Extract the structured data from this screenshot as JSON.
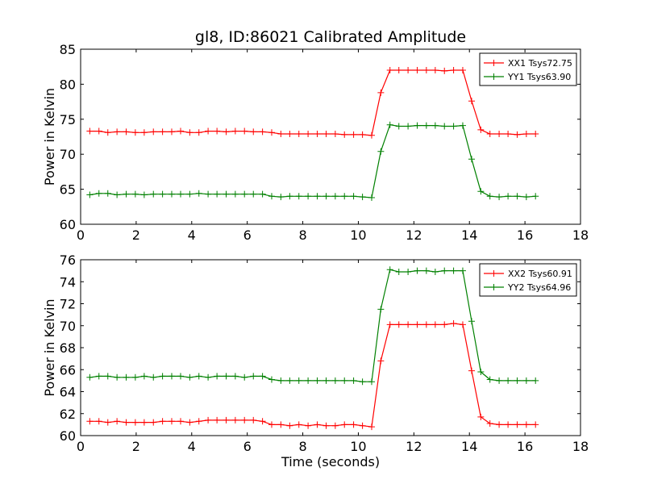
{
  "figure": {
    "title": "gl8, ID:86021 Calibrated Amplitude",
    "xlabel": "Time (seconds)"
  },
  "chart_data": [
    {
      "type": "line",
      "title": "gl8, ID:86021 Calibrated Amplitude",
      "xlabel": "",
      "ylabel": "Power in Kelvin",
      "xlim": [
        0,
        18
      ],
      "ylim": [
        60,
        85
      ],
      "xticks": [
        0,
        2,
        4,
        6,
        8,
        10,
        12,
        14,
        16,
        18
      ],
      "yticks": [
        60,
        65,
        70,
        75,
        80,
        85
      ],
      "grid": false,
      "legend_position": "top-right",
      "x": [
        0.33,
        0.66,
        0.98,
        1.31,
        1.64,
        1.97,
        2.29,
        2.62,
        2.95,
        3.28,
        3.6,
        3.93,
        4.26,
        4.59,
        4.91,
        5.24,
        5.57,
        5.9,
        6.22,
        6.55,
        6.88,
        7.21,
        7.53,
        7.86,
        8.19,
        8.52,
        8.84,
        9.17,
        9.5,
        9.83,
        10.15,
        10.48,
        10.81,
        11.14,
        11.46,
        11.79,
        12.12,
        12.45,
        12.77,
        13.1,
        13.43,
        13.76,
        14.08,
        14.41,
        14.74,
        15.07,
        15.39,
        15.72,
        16.05,
        16.38
      ],
      "series": [
        {
          "name": "XX1 Tsys72.75",
          "color": "#ff0000",
          "values": [
            73.3,
            73.3,
            73.1,
            73.2,
            73.2,
            73.1,
            73.1,
            73.2,
            73.2,
            73.2,
            73.3,
            73.1,
            73.1,
            73.3,
            73.3,
            73.2,
            73.3,
            73.3,
            73.2,
            73.2,
            73.1,
            72.9,
            72.9,
            72.9,
            72.9,
            72.9,
            72.9,
            72.9,
            72.8,
            72.8,
            72.8,
            72.7,
            78.8,
            82.0,
            82.0,
            82.0,
            82.0,
            82.0,
            82.0,
            81.9,
            82.0,
            82.0,
            77.6,
            73.5,
            72.9,
            72.9,
            72.9,
            72.8,
            72.9,
            72.9
          ]
        },
        {
          "name": "YY1 Tsys63.90",
          "color": "#008000",
          "values": [
            64.2,
            64.4,
            64.4,
            64.2,
            64.3,
            64.3,
            64.2,
            64.3,
            64.3,
            64.3,
            64.3,
            64.3,
            64.4,
            64.3,
            64.3,
            64.3,
            64.3,
            64.3,
            64.3,
            64.3,
            64.0,
            63.9,
            64.0,
            64.0,
            64.0,
            64.0,
            64.0,
            64.0,
            64.0,
            64.0,
            63.9,
            63.8,
            70.4,
            74.2,
            74.0,
            74.0,
            74.1,
            74.1,
            74.1,
            74.0,
            74.0,
            74.1,
            69.3,
            64.7,
            64.0,
            63.9,
            64.0,
            64.0,
            63.9,
            64.0
          ]
        }
      ]
    },
    {
      "type": "line",
      "title": "",
      "xlabel": "Time (seconds)",
      "ylabel": "Power in Kelvin",
      "xlim": [
        0,
        18
      ],
      "ylim": [
        60,
        76
      ],
      "xticks": [
        0,
        2,
        4,
        6,
        8,
        10,
        12,
        14,
        16,
        18
      ],
      "yticks": [
        60,
        62,
        64,
        66,
        68,
        70,
        72,
        74,
        76
      ],
      "grid": false,
      "legend_position": "top-right",
      "x": [
        0.33,
        0.66,
        0.98,
        1.31,
        1.64,
        1.97,
        2.29,
        2.62,
        2.95,
        3.28,
        3.6,
        3.93,
        4.26,
        4.59,
        4.91,
        5.24,
        5.57,
        5.9,
        6.22,
        6.55,
        6.88,
        7.21,
        7.53,
        7.86,
        8.19,
        8.52,
        8.84,
        9.17,
        9.5,
        9.83,
        10.15,
        10.48,
        10.81,
        11.14,
        11.46,
        11.79,
        12.12,
        12.45,
        12.77,
        13.1,
        13.43,
        13.76,
        14.08,
        14.41,
        14.74,
        15.07,
        15.39,
        15.72,
        16.05,
        16.38
      ],
      "series": [
        {
          "name": "XX2 Tsys60.91",
          "color": "#ff0000",
          "values": [
            61.3,
            61.3,
            61.2,
            61.3,
            61.2,
            61.2,
            61.2,
            61.2,
            61.3,
            61.3,
            61.3,
            61.2,
            61.3,
            61.4,
            61.4,
            61.4,
            61.4,
            61.4,
            61.4,
            61.3,
            61.0,
            61.0,
            60.9,
            61.0,
            60.9,
            61.0,
            60.9,
            60.9,
            61.0,
            61.0,
            60.9,
            60.8,
            66.8,
            70.1,
            70.1,
            70.1,
            70.1,
            70.1,
            70.1,
            70.1,
            70.2,
            70.1,
            65.9,
            61.7,
            61.1,
            61.0,
            61.0,
            61.0,
            61.0,
            61.0
          ]
        },
        {
          "name": "YY2 Tsys64.96",
          "color": "#008000",
          "values": [
            65.3,
            65.4,
            65.4,
            65.3,
            65.3,
            65.3,
            65.4,
            65.3,
            65.4,
            65.4,
            65.4,
            65.3,
            65.4,
            65.3,
            65.4,
            65.4,
            65.4,
            65.3,
            65.4,
            65.4,
            65.1,
            65.0,
            65.0,
            65.0,
            65.0,
            65.0,
            65.0,
            65.0,
            65.0,
            65.0,
            64.9,
            64.9,
            71.5,
            75.1,
            74.9,
            74.9,
            75.0,
            75.0,
            74.9,
            75.0,
            75.0,
            75.0,
            70.4,
            65.8,
            65.1,
            65.0,
            65.0,
            65.0,
            65.0,
            65.0
          ]
        }
      ]
    }
  ]
}
